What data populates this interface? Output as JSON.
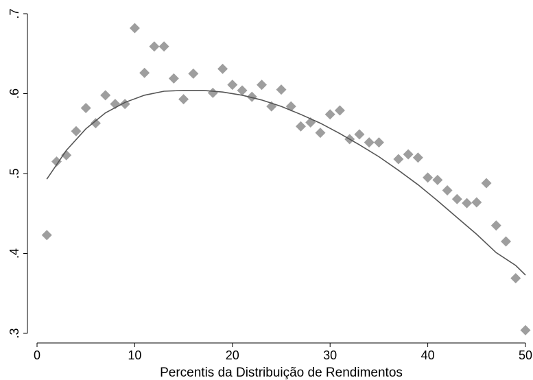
{
  "chart_data": {
    "type": "scatter",
    "title": "",
    "xlabel": "Percentis da Distribuição de Rendimentos",
    "ylabel": "",
    "xlim": [
      0,
      50
    ],
    "ylim": [
      0.3,
      0.7
    ],
    "x_ticks": [
      0,
      10,
      20,
      30,
      40,
      50
    ],
    "x_tick_labels": [
      "0",
      "10",
      "20",
      "30",
      "40",
      "50"
    ],
    "y_ticks": [
      0.3,
      0.4,
      0.5,
      0.6,
      0.7
    ],
    "y_tick_labels": [
      ".3",
      ".4",
      ".5",
      ".6",
      ".7"
    ],
    "grid": false,
    "legend": "none",
    "colors": {
      "points": "#9e9e9e",
      "fit": "#555555"
    },
    "series": [
      {
        "kind": "points",
        "marker": "diamond",
        "x": [
          1,
          2,
          3,
          4,
          5,
          6,
          7,
          8,
          9,
          10,
          11,
          12,
          13,
          14,
          15,
          16,
          18,
          19,
          20,
          21,
          22,
          23,
          24,
          25,
          26,
          27,
          28,
          29,
          30,
          31,
          32,
          33,
          34,
          35,
          37,
          38,
          39,
          40,
          41,
          42,
          43,
          44,
          45,
          46,
          47,
          48,
          49,
          50
        ],
        "y": [
          0.423,
          0.515,
          0.523,
          0.553,
          0.582,
          0.563,
          0.598,
          0.587,
          0.587,
          0.682,
          0.626,
          0.659,
          0.659,
          0.619,
          0.593,
          0.625,
          0.601,
          0.631,
          0.611,
          0.604,
          0.596,
          0.611,
          0.584,
          0.605,
          0.584,
          0.559,
          0.564,
          0.551,
          0.574,
          0.579,
          0.543,
          0.549,
          0.539,
          0.539,
          0.518,
          0.524,
          0.52,
          0.495,
          0.492,
          0.479,
          0.468,
          0.463,
          0.464,
          0.488,
          0.435,
          0.415,
          0.369,
          0.304
        ]
      },
      {
        "kind": "fitted-curve",
        "x": [
          1,
          3,
          5,
          7,
          9,
          11,
          13,
          15,
          17,
          19,
          21,
          23,
          25,
          27,
          29,
          31,
          33,
          35,
          37,
          39,
          41,
          43,
          45,
          47,
          49,
          50
        ],
        "y": [
          0.493,
          0.529,
          0.556,
          0.576,
          0.589,
          0.598,
          0.603,
          0.604,
          0.604,
          0.602,
          0.598,
          0.592,
          0.584,
          0.574,
          0.563,
          0.55,
          0.536,
          0.521,
          0.504,
          0.486,
          0.466,
          0.445,
          0.424,
          0.401,
          0.385,
          0.373
        ]
      }
    ]
  }
}
